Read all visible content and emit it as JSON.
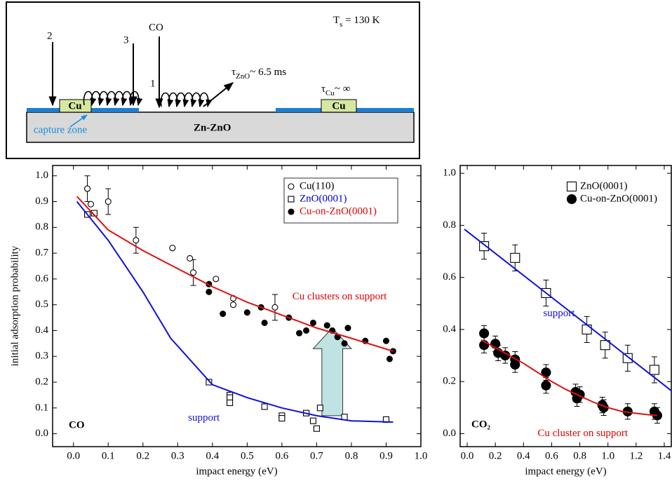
{
  "diagram": {
    "arrow_2": "2",
    "arrow_3": "3",
    "arrow_co": "CO",
    "arrow_1": "1",
    "tau_zno": {
      "symbol": "τ",
      "subscript": "ZnO",
      "rest": "~ 6.5 ms"
    },
    "temperature": {
      "symbol": "T",
      "subscript": "s",
      "rest": " = 130 K"
    },
    "tau_cu": {
      "symbol": "τ",
      "subscript": "Cu",
      "rest": "~ ∞"
    },
    "cluster_left": "Cu",
    "cluster_right": "Cu",
    "capture_zone": "capture zone",
    "substrate": "Zn-ZnO"
  },
  "chart_data": [
    {
      "type": "scatter",
      "label": "CO",
      "xlabel": "impact energy (eV)",
      "ylabel": "initial adsorption probability",
      "xlim": [
        -0.06,
        1.0
      ],
      "ylim": [
        -0.05,
        1.04
      ],
      "xticks": [
        {
          "value": 0,
          "label": "0.0"
        },
        0.1,
        0.2,
        0.3,
        0.4,
        0.5,
        0.6,
        0.7,
        0.8,
        0.9,
        {
          "value": 1,
          "label": "1.0"
        }
      ],
      "yticks": [
        {
          "value": 0,
          "label": "0.0"
        },
        0.1,
        0.2,
        0.3,
        0.4,
        0.5,
        0.6,
        0.7,
        0.8,
        0.9,
        {
          "value": 1,
          "label": "1.0"
        }
      ],
      "series": [
        {
          "name": "Cu(110)",
          "marker": "open-circle",
          "color": "#000000",
          "label_color": "#000000",
          "x": [
            0.04,
            0.05,
            0.1,
            0.18,
            0.285,
            0.335,
            0.345,
            0.41,
            0.46,
            0.46,
            0.58
          ],
          "values": [
            0.95,
            0.89,
            0.9,
            0.75,
            0.72,
            0.68,
            0.625,
            0.6,
            0.525,
            0.5,
            0.49
          ],
          "errors": [
            0.05,
            null,
            0.05,
            0.05,
            null,
            null,
            0.05,
            null,
            null,
            null,
            0.05
          ]
        },
        {
          "name": "ZnO(0001)",
          "marker": "open-square",
          "color": "#000000",
          "label_color": "#0000cc",
          "x": [
            0.04,
            0.06,
            0.39,
            0.45,
            0.45,
            0.45,
            0.55,
            0.6,
            0.6,
            0.67,
            0.69,
            0.7,
            0.71,
            0.78,
            0.9
          ],
          "values": [
            0.85,
            0.855,
            0.2,
            0.15,
            0.14,
            0.12,
            0.105,
            0.07,
            0.06,
            0.08,
            0.05,
            0.02,
            0.1,
            0.065,
            0.055
          ]
        },
        {
          "name": "Cu-on-ZnO(0001)",
          "marker": "filled-circle",
          "color": "#000000",
          "label_color": "#dd0000",
          "x": [
            0.39,
            0.39,
            0.43,
            0.5,
            0.54,
            0.55,
            0.62,
            0.65,
            0.67,
            0.69,
            0.73,
            0.745,
            0.76,
            0.79,
            0.78,
            0.84,
            0.9,
            0.91,
            0.92
          ],
          "values": [
            0.58,
            0.55,
            0.465,
            0.47,
            0.49,
            0.43,
            0.45,
            0.39,
            0.4,
            0.43,
            0.42,
            0.4,
            0.375,
            0.41,
            0.35,
            0.36,
            0.36,
            0.29,
            0.32
          ]
        },
        {
          "style": "line",
          "color": "#e01010",
          "x": [
            0.01,
            0.1,
            0.2,
            0.3,
            0.4,
            0.5,
            0.6,
            0.7,
            0.8,
            0.92
          ],
          "values": [
            0.92,
            0.79,
            0.71,
            0.64,
            0.57,
            0.51,
            0.46,
            0.41,
            0.37,
            0.32
          ]
        },
        {
          "style": "line",
          "color": "#1010dd",
          "x": [
            0.01,
            0.1,
            0.2,
            0.28,
            0.4,
            0.5,
            0.6,
            0.7,
            0.8,
            0.92
          ],
          "values": [
            0.9,
            0.75,
            0.55,
            0.37,
            0.19,
            0.14,
            0.1,
            0.07,
            0.05,
            0.045
          ]
        }
      ],
      "annotations": [
        {
          "text": "Cu clusters on support",
          "color": "#dd0000"
        },
        {
          "text": "support",
          "color": "#1010dd"
        }
      ]
    },
    {
      "type": "scatter",
      "label": "CO₂",
      "xlabel": "impact energy (eV)",
      "xlim": [
        -0.05,
        1.45
      ],
      "ylim": [
        -0.05,
        1.03
      ],
      "xticks": [
        {
          "value": 0,
          "label": "0.0"
        },
        0.2,
        0.4,
        0.6,
        0.8,
        {
          "value": 1,
          "label": "1.0"
        },
        1.2,
        1.4
      ],
      "yticks": [
        {
          "value": 0,
          "label": "0.0"
        },
        0.2,
        0.4,
        0.6,
        0.8,
        {
          "value": 1,
          "label": "1.0"
        }
      ],
      "series": [
        {
          "name": "ZnO(0001)",
          "marker": "open-square",
          "color": "#000000",
          "label_color": "#000000",
          "x": [
            0.12,
            0.34,
            0.56,
            0.85,
            0.98,
            1.14,
            1.33
          ],
          "values": [
            0.72,
            0.675,
            0.54,
            0.4,
            0.34,
            0.29,
            0.245
          ],
          "errors": [
            0.05,
            0.05,
            0.05,
            0.05,
            0.05,
            0.05,
            0.05
          ]
        },
        {
          "name": "Cu-on-ZnO(0001)",
          "marker": "filled-circle",
          "color": "#000000",
          "label_color": "#000000",
          "x": [
            0.12,
            0.12,
            0.2,
            0.22,
            0.27,
            0.34,
            0.34,
            0.56,
            0.56,
            0.77,
            0.8,
            0.78,
            0.96,
            0.97,
            1.14,
            1.33,
            1.35
          ],
          "values": [
            0.385,
            0.34,
            0.345,
            0.31,
            0.3,
            0.285,
            0.265,
            0.235,
            0.185,
            0.16,
            0.15,
            0.135,
            0.11,
            0.1,
            0.085,
            0.085,
            0.07
          ],
          "errors": [
            0.03,
            0.03,
            0.03,
            0.03,
            0.03,
            0.03,
            0.03,
            0.03,
            0.03,
            0.03,
            0.03,
            0.03,
            0.03,
            0.03,
            0.03,
            0.03,
            0.03
          ]
        },
        {
          "style": "line",
          "color": "#1010dd",
          "x": [
            -0.02,
            1.45
          ],
          "values": [
            0.785,
            0.165
          ]
        },
        {
          "style": "line",
          "color": "#e01010",
          "x": [
            0.1,
            0.2,
            0.3,
            0.4,
            0.5,
            0.6,
            0.7,
            0.8,
            0.9,
            1.0,
            1.1,
            1.2,
            1.3,
            1.35
          ],
          "values": [
            0.36,
            0.33,
            0.3,
            0.27,
            0.235,
            0.2,
            0.17,
            0.145,
            0.12,
            0.1,
            0.085,
            0.078,
            0.072,
            0.07
          ]
        }
      ],
      "annotations": [
        {
          "text": "support",
          "color": "#1010dd"
        },
        {
          "text": "Cu cluster on support",
          "color": "#dd0000"
        }
      ]
    }
  ]
}
